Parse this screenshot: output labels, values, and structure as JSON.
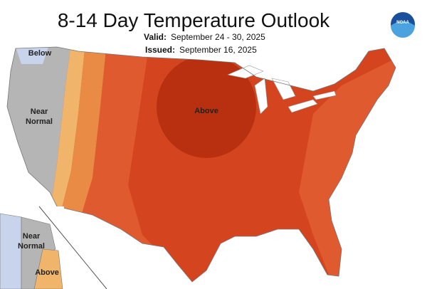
{
  "header": {
    "title": "8-14 Day Temperature Outlook",
    "valid_label": "Valid:",
    "valid_dates": "September 24 - 30, 2025",
    "issued_label": "Issued:",
    "issued_date": "September 16, 2025"
  },
  "logo": "NOAA",
  "map": {
    "labels": [
      [
        "Below"
      ],
      [
        "Near",
        "Normal"
      ],
      [
        "Above"
      ]
    ]
  },
  "inset": {
    "labels": [
      [
        "Near",
        "Normal"
      ],
      [
        "Above"
      ]
    ]
  }
}
